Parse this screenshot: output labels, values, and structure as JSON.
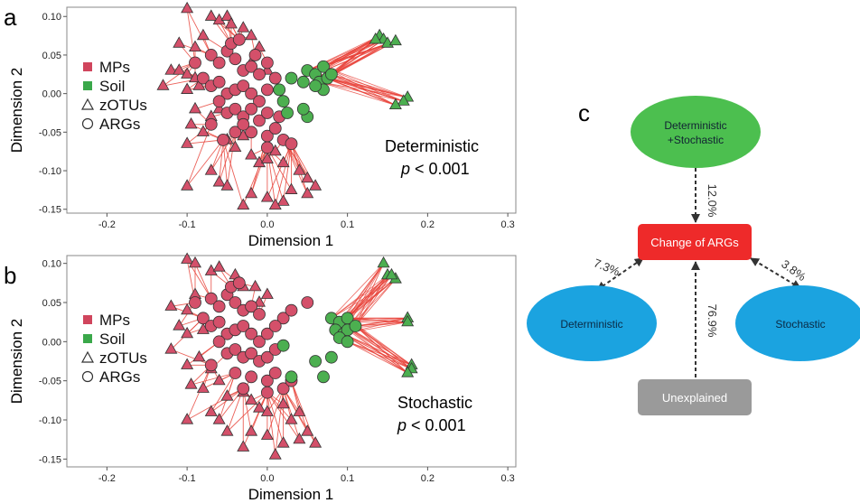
{
  "panels": {
    "a": {
      "letter": "a",
      "annotation_line1": "Deterministic",
      "annotation_p": "p",
      "annotation_rest": " < 0.001"
    },
    "b": {
      "letter": "b",
      "annotation_line1": "Stochastic",
      "annotation_p": "p",
      "annotation_rest": " < 0.001"
    },
    "c": {
      "letter": "c"
    }
  },
  "legend": {
    "items": [
      {
        "label": "MPs",
        "symbol": "square",
        "color": "#d0455d"
      },
      {
        "label": "Soil",
        "symbol": "square",
        "color": "#3aa84a"
      },
      {
        "label": "zOTUs",
        "symbol": "triangle",
        "color": "none"
      },
      {
        "label": "ARGs",
        "symbol": "circle",
        "color": "none"
      }
    ]
  },
  "colors": {
    "mps": "#d4506a",
    "soil": "#4caf50",
    "line": "#e8453c",
    "node_green": "#4cbf4f",
    "node_red": "#ee2a2a",
    "node_blue": "#1ba3e0",
    "node_gray": "#9a9a9a"
  },
  "chart_data": [
    {
      "type": "scatter",
      "panel": "a",
      "title": "",
      "xlabel": "Dimension 1",
      "ylabel": "Dimension 2",
      "xlim": [
        -0.25,
        0.31
      ],
      "ylim": [
        -0.155,
        0.112
      ],
      "xticks": [
        "-0.2",
        "-0.1",
        "0.0",
        "0.1",
        "0.2",
        "0.3"
      ],
      "yticks": [
        "0.10",
        "0.05",
        "0.00",
        "-0.05",
        "-0.10",
        "-0.15"
      ],
      "xtick_values": [
        -0.2,
        -0.1,
        0.0,
        0.1,
        0.2,
        0.3
      ],
      "ytick_values": [
        0.1,
        0.05,
        0.0,
        -0.05,
        -0.1,
        -0.15
      ],
      "grid": false,
      "legend_position": "left",
      "series": [
        {
          "name": "MPs zOTUs",
          "group": "MPs",
          "shape": "triangle",
          "points": [
            [
              -0.1,
              0.11
            ],
            [
              -0.07,
              0.1
            ],
            [
              -0.06,
              0.095
            ],
            [
              -0.05,
              0.1
            ],
            [
              -0.045,
              0.09
            ],
            [
              -0.03,
              0.085
            ],
            [
              -0.02,
              0.075
            ],
            [
              -0.11,
              0.065
            ],
            [
              -0.09,
              0.06
            ],
            [
              -0.08,
              0.075
            ],
            [
              -0.12,
              0.03
            ],
            [
              -0.11,
              0.03
            ],
            [
              -0.1,
              0.025
            ],
            [
              -0.09,
              0.02
            ],
            [
              -0.13,
              0.01
            ],
            [
              -0.1,
              0.005
            ],
            [
              -0.085,
              0.01
            ],
            [
              -0.09,
              -0.02
            ],
            [
              -0.07,
              -0.03
            ],
            [
              -0.06,
              -0.02
            ],
            [
              -0.095,
              -0.04
            ],
            [
              -0.08,
              -0.05
            ],
            [
              -0.1,
              -0.065
            ],
            [
              -0.05,
              -0.06
            ],
            [
              -0.03,
              -0.055
            ],
            [
              -0.04,
              -0.07
            ],
            [
              -0.02,
              -0.08
            ],
            [
              -0.01,
              -0.09
            ],
            [
              0.0,
              -0.085
            ],
            [
              -0.07,
              -0.1
            ],
            [
              -0.06,
              -0.115
            ],
            [
              -0.05,
              -0.12
            ],
            [
              -0.1,
              -0.12
            ],
            [
              -0.02,
              -0.13
            ],
            [
              0.0,
              -0.135
            ],
            [
              0.02,
              -0.14
            ],
            [
              0.03,
              -0.125
            ],
            [
              0.05,
              -0.11
            ],
            [
              0.06,
              -0.12
            ],
            [
              0.05,
              -0.13
            ],
            [
              -0.03,
              -0.145
            ],
            [
              0.01,
              -0.145
            ],
            [
              0.04,
              -0.1
            ],
            [
              0.02,
              -0.09
            ],
            [
              0.01,
              -0.075
            ],
            [
              -0.01,
              0.06
            ],
            [
              -0.02,
              0.04
            ],
            [
              0.0,
              0.03
            ]
          ]
        },
        {
          "name": "MPs ARGs",
          "group": "MPs",
          "shape": "circle",
          "points": [
            [
              -0.07,
              0.05
            ],
            [
              -0.06,
              0.04
            ],
            [
              -0.05,
              0.055
            ],
            [
              -0.04,
              0.045
            ],
            [
              -0.03,
              0.03
            ],
            [
              -0.02,
              0.035
            ],
            [
              -0.01,
              0.025
            ],
            [
              -0.08,
              0.02
            ],
            [
              -0.07,
              0.01
            ],
            [
              -0.06,
              0.015
            ],
            [
              -0.05,
              0.0
            ],
            [
              -0.04,
              0.005
            ],
            [
              -0.03,
              0.01
            ],
            [
              -0.02,
              0.0
            ],
            [
              -0.01,
              -0.01
            ],
            [
              0.0,
              0.005
            ],
            [
              -0.06,
              -0.01
            ],
            [
              -0.05,
              -0.025
            ],
            [
              -0.04,
              -0.02
            ],
            [
              -0.03,
              -0.03
            ],
            [
              -0.02,
              -0.02
            ],
            [
              -0.01,
              -0.035
            ],
            [
              0.0,
              -0.025
            ],
            [
              -0.07,
              -0.04
            ],
            [
              -0.04,
              -0.05
            ],
            [
              -0.02,
              -0.05
            ],
            [
              0.0,
              -0.055
            ],
            [
              0.01,
              -0.045
            ],
            [
              0.02,
              -0.06
            ],
            [
              0.03,
              -0.065
            ],
            [
              0.0,
              -0.07
            ],
            [
              -0.03,
              -0.04
            ],
            [
              0.015,
              -0.03
            ],
            [
              -0.045,
              0.065
            ],
            [
              -0.035,
              0.07
            ],
            [
              -0.015,
              0.05
            ],
            [
              -0.09,
              0.04
            ],
            [
              -0.055,
              -0.06
            ],
            [
              0.0,
              0.04
            ],
            [
              0.01,
              0.02
            ]
          ]
        },
        {
          "name": "Soil zOTUs",
          "group": "Soil",
          "shape": "triangle",
          "points": [
            [
              0.14,
              0.075
            ],
            [
              0.145,
              0.07
            ],
            [
              0.15,
              0.065
            ],
            [
              0.135,
              0.07
            ],
            [
              0.16,
              0.068
            ],
            [
              0.175,
              -0.005
            ],
            [
              0.17,
              -0.01
            ],
            [
              0.16,
              -0.015
            ]
          ]
        },
        {
          "name": "Soil ARGs",
          "group": "Soil",
          "shape": "circle",
          "points": [
            [
              0.05,
              0.03
            ],
            [
              0.06,
              0.025
            ],
            [
              0.07,
              0.035
            ],
            [
              0.065,
              0.015
            ],
            [
              0.075,
              0.02
            ],
            [
              0.07,
              0.005
            ],
            [
              0.06,
              0.01
            ],
            [
              0.08,
              0.025
            ],
            [
              0.045,
              0.015
            ],
            [
              0.03,
              0.02
            ],
            [
              0.02,
              -0.01
            ],
            [
              0.025,
              -0.025
            ],
            [
              0.05,
              -0.03
            ],
            [
              0.045,
              -0.02
            ],
            [
              0.015,
              0.005
            ]
          ]
        }
      ]
    },
    {
      "type": "scatter",
      "panel": "b",
      "title": "",
      "xlabel": "Dimension 1",
      "ylabel": "Dimension 2",
      "xlim": [
        -0.25,
        0.31
      ],
      "ylim": [
        -0.16,
        0.11
      ],
      "xticks": [
        "-0.2",
        "-0.1",
        "0.0",
        "0.1",
        "0.2",
        "0.3"
      ],
      "yticks": [
        "0.10",
        "0.05",
        "0.00",
        "-0.05",
        "-0.10",
        "-0.15"
      ],
      "xtick_values": [
        -0.2,
        -0.1,
        0.0,
        0.1,
        0.2,
        0.3
      ],
      "ytick_values": [
        0.1,
        0.05,
        0.0,
        -0.05,
        -0.1,
        -0.15
      ],
      "grid": false,
      "legend_position": "left",
      "series": [
        {
          "name": "MPs zOTUs",
          "group": "MPs",
          "shape": "triangle",
          "points": [
            [
              -0.1,
              0.105
            ],
            [
              -0.09,
              0.1
            ],
            [
              -0.07,
              0.09
            ],
            [
              -0.06,
              0.095
            ],
            [
              -0.04,
              0.085
            ],
            [
              -0.03,
              0.07
            ],
            [
              -0.12,
              0.045
            ],
            [
              -0.1,
              0.04
            ],
            [
              -0.09,
              0.06
            ],
            [
              -0.11,
              0.02
            ],
            [
              -0.1,
              0.01
            ],
            [
              -0.08,
              0.015
            ],
            [
              -0.12,
              -0.01
            ],
            [
              -0.1,
              -0.03
            ],
            [
              -0.085,
              -0.02
            ],
            [
              -0.07,
              -0.035
            ],
            [
              -0.095,
              -0.055
            ],
            [
              -0.08,
              -0.06
            ],
            [
              -0.06,
              -0.05
            ],
            [
              -0.05,
              -0.07
            ],
            [
              -0.03,
              -0.065
            ],
            [
              -0.02,
              -0.075
            ],
            [
              -0.01,
              -0.085
            ],
            [
              0.0,
              -0.09
            ],
            [
              -0.07,
              -0.09
            ],
            [
              -0.06,
              -0.1
            ],
            [
              -0.1,
              -0.1
            ],
            [
              -0.05,
              -0.115
            ],
            [
              -0.02,
              -0.115
            ],
            [
              0.0,
              -0.12
            ],
            [
              0.02,
              -0.13
            ],
            [
              0.04,
              -0.125
            ],
            [
              0.05,
              -0.115
            ],
            [
              0.06,
              -0.13
            ],
            [
              -0.03,
              -0.135
            ],
            [
              0.01,
              -0.145
            ],
            [
              0.03,
              -0.1
            ],
            [
              0.02,
              -0.08
            ],
            [
              0.04,
              -0.09
            ],
            [
              -0.01,
              0.05
            ],
            [
              -0.015,
              0.07
            ],
            [
              0.0,
              0.06
            ]
          ]
        },
        {
          "name": "MPs ARGs",
          "group": "MPs",
          "shape": "circle",
          "points": [
            [
              -0.07,
              0.055
            ],
            [
              -0.06,
              0.045
            ],
            [
              -0.05,
              0.06
            ],
            [
              -0.04,
              0.05
            ],
            [
              -0.03,
              0.04
            ],
            [
              -0.02,
              0.045
            ],
            [
              -0.01,
              0.035
            ],
            [
              -0.08,
              0.03
            ],
            [
              -0.07,
              0.02
            ],
            [
              -0.06,
              0.025
            ],
            [
              -0.05,
              0.01
            ],
            [
              -0.04,
              0.015
            ],
            [
              -0.03,
              0.02
            ],
            [
              -0.02,
              0.01
            ],
            [
              -0.01,
              0.0
            ],
            [
              0.0,
              0.01
            ],
            [
              -0.06,
              0.0
            ],
            [
              -0.05,
              -0.015
            ],
            [
              -0.04,
              -0.01
            ],
            [
              -0.03,
              -0.02
            ],
            [
              -0.02,
              -0.015
            ],
            [
              -0.01,
              -0.025
            ],
            [
              0.0,
              -0.02
            ],
            [
              -0.07,
              -0.03
            ],
            [
              -0.04,
              -0.04
            ],
            [
              -0.02,
              -0.045
            ],
            [
              0.0,
              -0.05
            ],
            [
              0.01,
              -0.04
            ],
            [
              0.02,
              -0.06
            ],
            [
              0.03,
              -0.05
            ],
            [
              0.0,
              -0.065
            ],
            [
              -0.03,
              -0.06
            ],
            [
              0.05,
              0.05
            ],
            [
              0.02,
              0.03
            ],
            [
              0.03,
              0.04
            ],
            [
              -0.045,
              0.07
            ],
            [
              -0.035,
              0.075
            ],
            [
              -0.09,
              0.05
            ],
            [
              0.01,
              0.02
            ],
            [
              0.01,
              -0.01
            ]
          ]
        },
        {
          "name": "Soil zOTUs",
          "group": "Soil",
          "shape": "triangle",
          "points": [
            [
              0.145,
              0.1
            ],
            [
              0.15,
              0.085
            ],
            [
              0.16,
              0.08
            ],
            [
              0.155,
              0.085
            ],
            [
              0.175,
              0.03
            ],
            [
              0.175,
              0.025
            ],
            [
              0.18,
              -0.03
            ],
            [
              0.18,
              -0.035
            ],
            [
              0.175,
              -0.04
            ]
          ]
        },
        {
          "name": "Soil ARGs",
          "group": "Soil",
          "shape": "circle",
          "points": [
            [
              0.08,
              0.03
            ],
            [
              0.09,
              0.025
            ],
            [
              0.1,
              0.03
            ],
            [
              0.085,
              0.015
            ],
            [
              0.095,
              0.01
            ],
            [
              0.1,
              0.015
            ],
            [
              0.11,
              0.02
            ],
            [
              0.09,
              0.005
            ],
            [
              0.1,
              0.0
            ],
            [
              0.08,
              -0.02
            ],
            [
              0.06,
              -0.025
            ],
            [
              0.07,
              -0.045
            ],
            [
              0.03,
              -0.045
            ],
            [
              0.02,
              -0.005
            ]
          ]
        }
      ]
    },
    {
      "type": "diagram",
      "panel": "c",
      "nodes": [
        {
          "id": "both",
          "label": "Deterministic\n+Stochastic",
          "shape": "ellipse",
          "color": "#4cbf4f"
        },
        {
          "id": "args",
          "label": "Change of ARGs",
          "shape": "rect",
          "color": "#ee2a2a"
        },
        {
          "id": "det",
          "label": "Deterministic",
          "shape": "ellipse",
          "color": "#1ba3e0"
        },
        {
          "id": "sto",
          "label": "Stochastic",
          "shape": "ellipse",
          "color": "#1ba3e0"
        },
        {
          "id": "unx",
          "label": "Unexplained",
          "shape": "rect",
          "color": "#9a9a9a"
        }
      ],
      "edges": [
        {
          "from": "both",
          "to": "args",
          "label": "12.0%",
          "value": 12.0
        },
        {
          "from": "det",
          "to": "args",
          "label": "7.3%",
          "value": 7.3
        },
        {
          "from": "sto",
          "to": "args",
          "label": "3.8%",
          "value": 3.8
        },
        {
          "from": "unx",
          "to": "args",
          "label": "76.9%",
          "value": 76.9
        }
      ]
    }
  ]
}
